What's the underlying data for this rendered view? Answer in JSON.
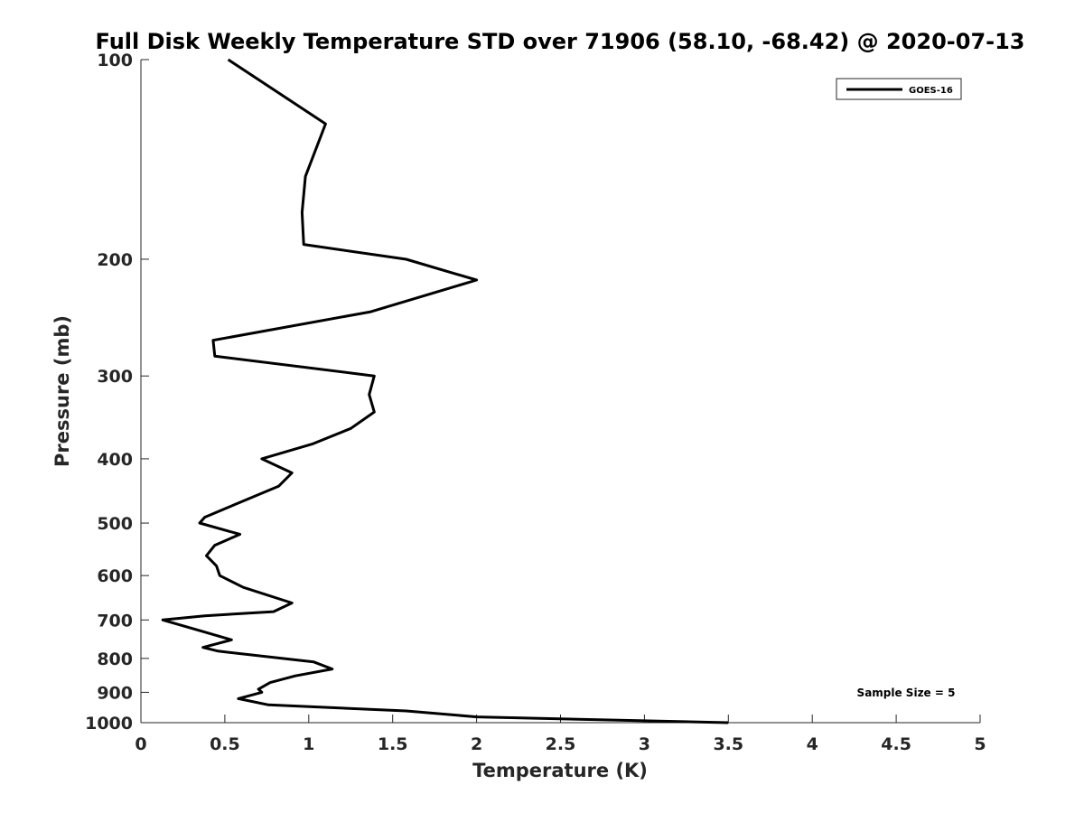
{
  "chart_data": {
    "type": "line",
    "title": "Full Disk Weekly Temperature STD over 71906 (58.10, -68.42) @ 2020-07-13",
    "xlabel": "Temperature (K)",
    "ylabel": "Pressure (mb)",
    "xlim": [
      0,
      5
    ],
    "ylim": [
      1000,
      100
    ],
    "y_scale": "log",
    "y_reversed": true,
    "x_ticks": [
      "0",
      "0.5",
      "1",
      "1.5",
      "2",
      "2.5",
      "3",
      "3.5",
      "4",
      "4.5",
      "5"
    ],
    "y_ticks": [
      "100",
      "200",
      "300",
      "400",
      "500",
      "600",
      "700",
      "800",
      "900",
      "1000"
    ],
    "grid": false,
    "legend_position": "top-right",
    "annotation": "Sample Size = 5",
    "series": [
      {
        "name": "GOES-16",
        "color": "#000000",
        "x": [
          0.52,
          1.1,
          0.98,
          0.96,
          0.97,
          1.58,
          2.0,
          1.37,
          0.43,
          0.44,
          1.39,
          1.36,
          1.39,
          1.25,
          1.02,
          0.72,
          0.9,
          0.82,
          0.55,
          0.38,
          0.35,
          0.59,
          0.44,
          0.39,
          0.45,
          0.47,
          0.61,
          0.9,
          0.79,
          0.38,
          0.13,
          0.38,
          0.54,
          0.37,
          0.46,
          1.03,
          1.14,
          0.92,
          0.77,
          0.7,
          0.72,
          0.58,
          0.76,
          1.58,
          2.0,
          3.5
        ],
        "y": [
          100,
          125,
          150,
          170,
          190,
          200,
          215,
          240,
          265,
          280,
          300,
          320,
          340,
          360,
          380,
          400,
          420,
          440,
          470,
          490,
          500,
          520,
          540,
          560,
          580,
          600,
          625,
          660,
          680,
          690,
          700,
          730,
          750,
          770,
          780,
          810,
          830,
          850,
          870,
          890,
          900,
          920,
          940,
          960,
          980,
          1000
        ]
      }
    ]
  }
}
